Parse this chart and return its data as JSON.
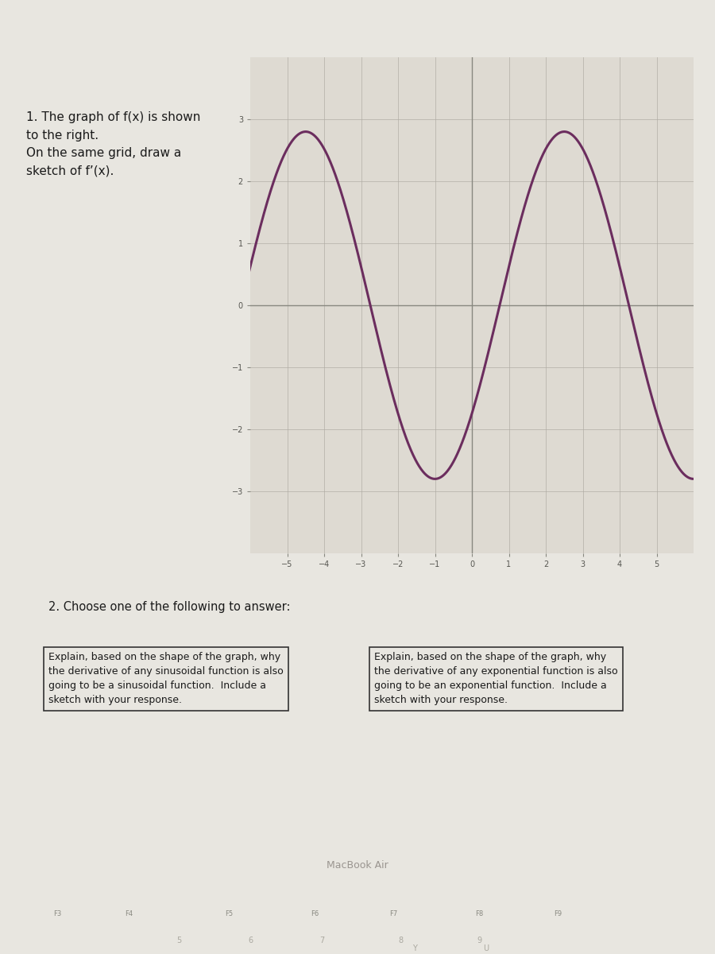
{
  "background_color": "#e8e6e0",
  "grid_background": "#dedad2",
  "curve_color": "#6b2d5e",
  "curve_linewidth": 2.2,
  "xlim": [
    -6,
    6
  ],
  "ylim": [
    -4,
    4
  ],
  "x_ticks": [
    -5,
    -4,
    -3,
    -2,
    -1,
    0,
    1,
    2,
    3,
    4,
    5
  ],
  "y_ticks": [
    -3,
    -2,
    -1,
    0,
    1,
    2,
    3
  ],
  "x_tick_labels": [
    "-5",
    "-4",
    "-3",
    "-2",
    "-1",
    "0",
    "1",
    "2",
    "3",
    "4",
    "5"
  ],
  "y_tick_labels": [
    "-3",
    "-2",
    "-1",
    "0",
    "1",
    "2",
    "3"
  ],
  "question1_lines": [
    "1. The graph of f(x) is shown",
    "to the right.",
    "On the same grid, draw a",
    "sketch of f’(x)."
  ],
  "question2_header": "2. Choose one of the following to answer:",
  "box1_text": "Explain, based on the shape of the graph, why\nthe derivative of any sinusoidal function is also\ngoing to be a sinusoidal function.  Include a\nsketch with your response.",
  "box2_text": "Explain, based on the shape of the graph, why\nthe derivative of any exponential function is also\ngoing to be an exponential function.  Include a\nsketch with your response.",
  "sinusoid_amplitude": 2.6,
  "sinusoid_period": 8.0,
  "sinusoid_phase": 1.0,
  "sinusoid_xmin": -6.0,
  "sinusoid_xmax": 6.0,
  "keyboard_bg": "#3a3530",
  "screen_bg": "#c8c4bc"
}
